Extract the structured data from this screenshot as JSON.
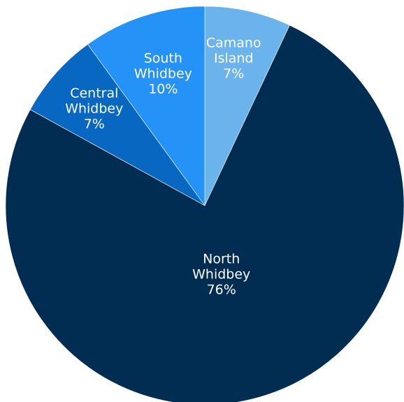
{
  "chart_data": {
    "type": "pie",
    "slices": [
      {
        "label_lines": [
          "Camano",
          "Island"
        ],
        "value": 7,
        "value_label": "7%",
        "color": "#6bb3ec"
      },
      {
        "label_lines": [
          "North",
          "Whidbey"
        ],
        "value": 76,
        "value_label": "76%",
        "color": "#022d53"
      },
      {
        "label_lines": [
          "Central",
          "Whidbey"
        ],
        "value": 7,
        "value_label": "7%",
        "color": "#0867c0"
      },
      {
        "label_lines": [
          "South",
          "Whidbey"
        ],
        "value": 10,
        "value_label": "10%",
        "color": "#2492f6"
      }
    ],
    "start_angle_deg": 0,
    "direction": "clockwise",
    "legend": "none"
  }
}
